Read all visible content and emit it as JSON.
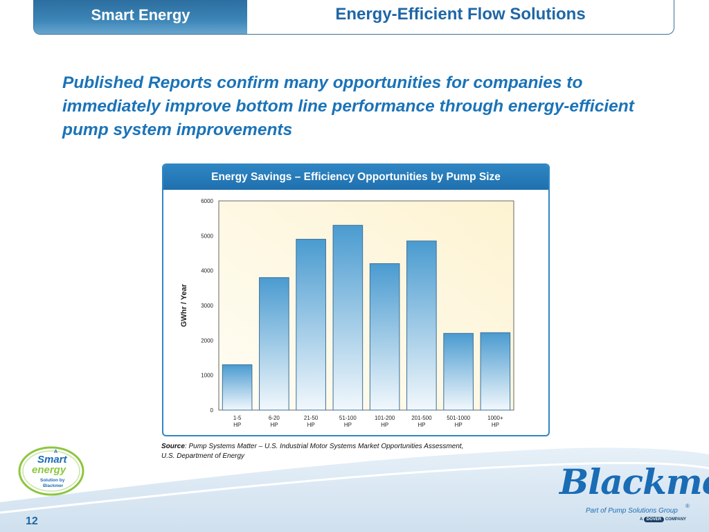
{
  "header": {
    "left_title": "Smart Energy",
    "right_title": "Energy-Efficient Flow Solutions"
  },
  "headline": "Published Reports confirm many opportunities for companies to immediately improve bottom line performance through energy-efficient pump system improvements",
  "chart_data": {
    "type": "bar",
    "title": "Energy Savings – Efficiency Opportunities by Pump Size",
    "ylabel": "GWhr / Year",
    "xlabel": "",
    "categories": [
      [
        "1-5",
        "HP"
      ],
      [
        "6-20",
        "HP"
      ],
      [
        "21-50",
        "HP"
      ],
      [
        "51-100",
        "HP"
      ],
      [
        "101-200",
        "HP"
      ],
      [
        "201-500",
        "HP"
      ],
      [
        "501-1000",
        "HP"
      ],
      [
        "1000+",
        "HP"
      ]
    ],
    "values": [
      1300,
      3800,
      4900,
      5300,
      4200,
      4850,
      2200,
      2220
    ],
    "ylim": [
      0,
      6000
    ],
    "yticks": [
      0,
      1000,
      2000,
      3000,
      4000,
      5000,
      6000
    ],
    "colors": {
      "bar_top": "#4a9bd0",
      "bar_bottom": "#f2f8fc",
      "plot_bg_top": "#fdf3d2",
      "plot_bg_bottom": "#fffdf4"
    }
  },
  "source": {
    "label": "Source",
    "text": ": Pump Systems Matter – U.S. Industrial Motor Systems Market Opportunities Assessment,",
    "line2": "U.S. Department of Energy"
  },
  "badge": {
    "a": "A",
    "smart": "Smart",
    "energy": "energy",
    "line1": "Solution by",
    "line2": "Blackmer"
  },
  "logo": {
    "word": "Blackmer",
    "sub": "Part of Pump Solutions Group",
    "reg": "®",
    "dover_pre": "A",
    "dover": "DOVER",
    "dover_post": "COMPANY"
  },
  "page_number": "12"
}
